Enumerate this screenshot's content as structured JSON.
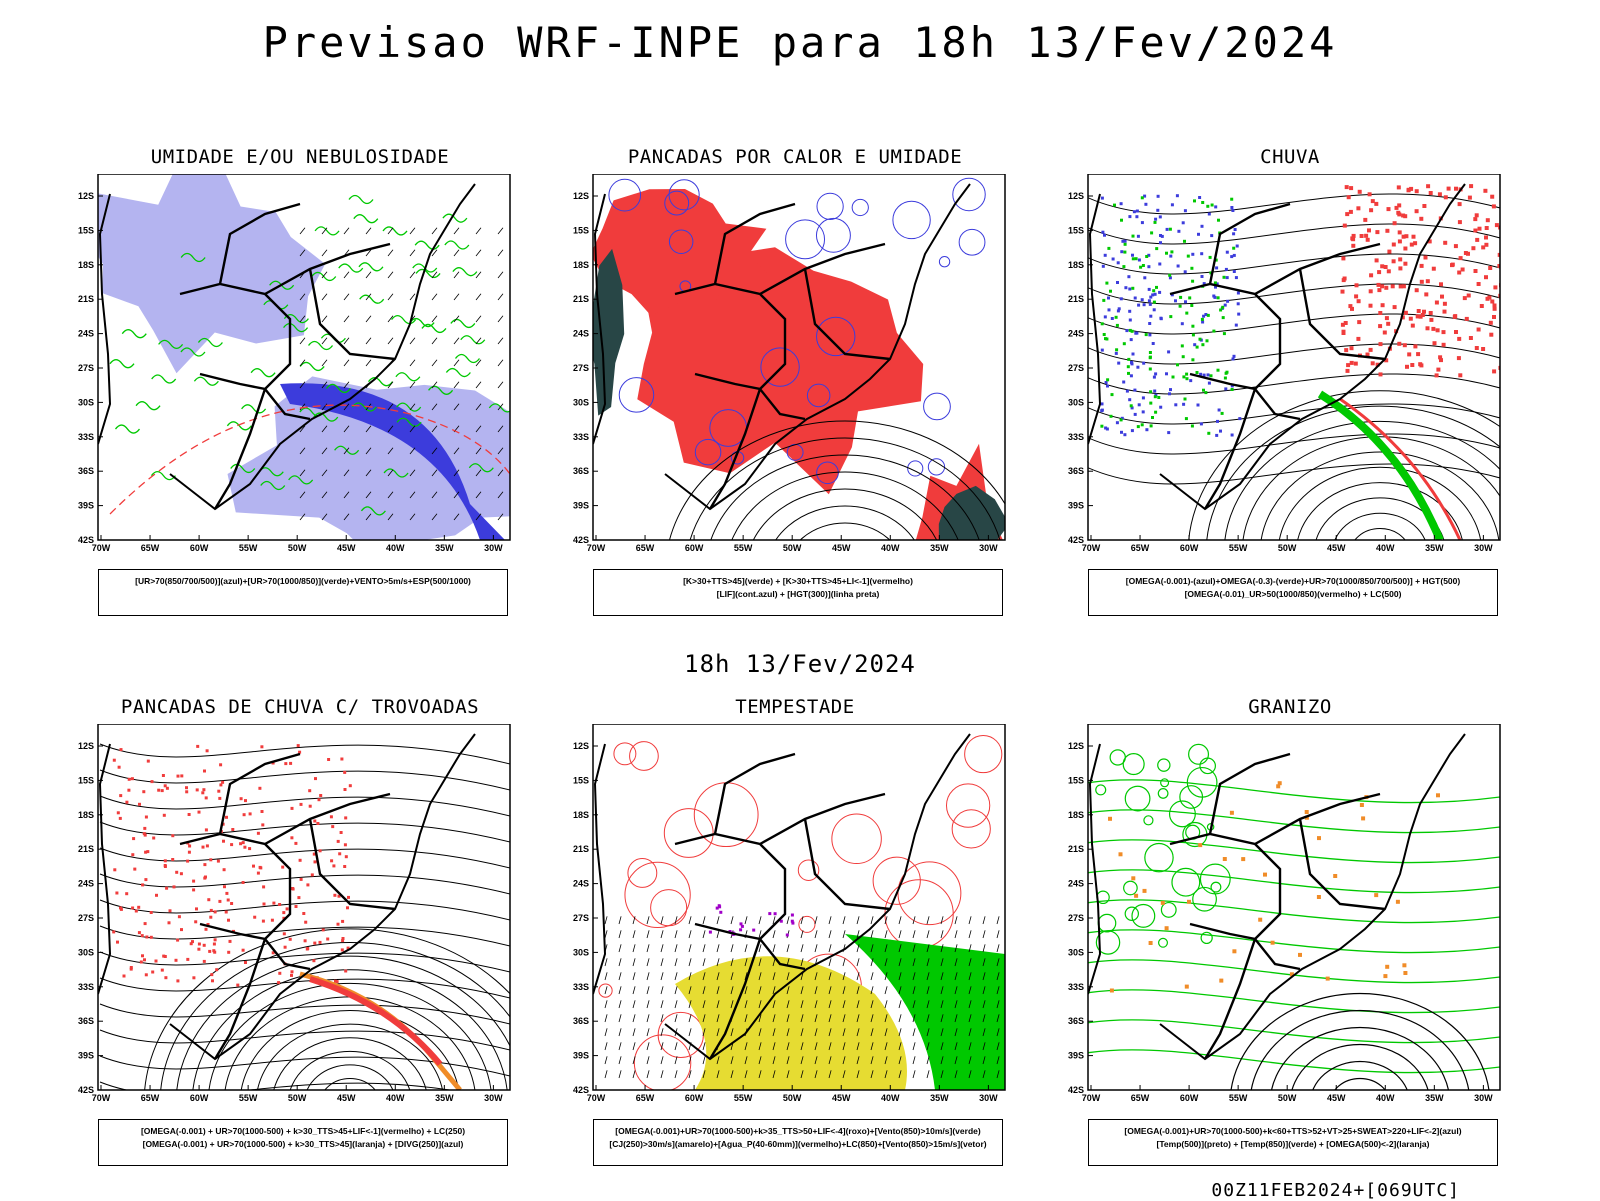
{
  "title": "Previsao WRF-INPE  para 18h 13/Fev/2024",
  "subtitle": "18h 13/Fev/2024",
  "footer": "00Z11FEB2024+[069UTC]",
  "axes": {
    "lon_labels": [
      "70W",
      "65W",
      "60W",
      "55W",
      "50W",
      "45W",
      "40W",
      "35W",
      "30W"
    ],
    "lat_labels": [
      "12S",
      "15S",
      "18S",
      "21S",
      "24S",
      "27S",
      "30S",
      "33S",
      "36S",
      "39S",
      "42S"
    ]
  },
  "colors": {
    "lightblue": "#b4b4f0",
    "blue": "#3c3cdc",
    "green": "#00c800",
    "red": "#f03c3c",
    "darkgreen": "#284646",
    "yellow": "#e6dc32",
    "orange": "#f08c28",
    "purple": "#a000c8"
  },
  "panels": [
    {
      "title": "UMIDADE E/OU NEBULOSIDADE",
      "legend": [
        "[UR>70(850/700/500)](azul)+[UR>70(1000/850)](verde)+VENTO>5m/s+ESP(500/1000)"
      ]
    },
    {
      "title": "PANCADAS POR CALOR E UMIDADE",
      "legend": [
        "[K>30+TTS>45](verde) + [K>30+TTS>45+LI<-1](vermelho)",
        "[LIF](cont.azul) + [HGT(300)](linha preta)"
      ]
    },
    {
      "title": "CHUVA",
      "legend": [
        "[OMEGA(-0.001)-(azul)+OMEGA(-0.3)-(verde)+UR>70(1000/850/700/500)] + HGT(500)",
        "[OMEGA(-0.01)_UR>50(1000/850)(vermelho) + LC(500)"
      ]
    },
    {
      "title": "PANCADAS DE CHUVA C/ TROVOADAS",
      "legend": [
        "[OMEGA(-0.001) + UR>70(1000-500) + k>30_TTS>45+LIF<-1](vermelho) + LC(250)",
        "[OMEGA(-0.001) + UR>70(1000-500) + k>30_TTS>45](laranja) + [DIVG(250)](azul)"
      ]
    },
    {
      "title": "TEMPESTADE",
      "legend": [
        "[OMEGA(-0.001)+UR>70(1000-500)+k>35_TTS>50+LIF<-4](roxo)+[Vento(850)>10m/s](verde)",
        "[CJ(250)>30m/s](amarelo)+[Agua_P(40-60mm)](vermelho)+LC(850)+[Vento(850)>15m/s](vetor)"
      ]
    },
    {
      "title": "GRANIZO",
      "legend": [
        "[OMEGA(-0.001)+UR>70(1000-500)+k<60+TTS>52+VT>25+SWEAT>220+LIF<-2](azul)",
        "[Temp(500)](preto) + [Temp(850)](verde) + [OMEGA(500)<-2](laranja)"
      ]
    }
  ]
}
